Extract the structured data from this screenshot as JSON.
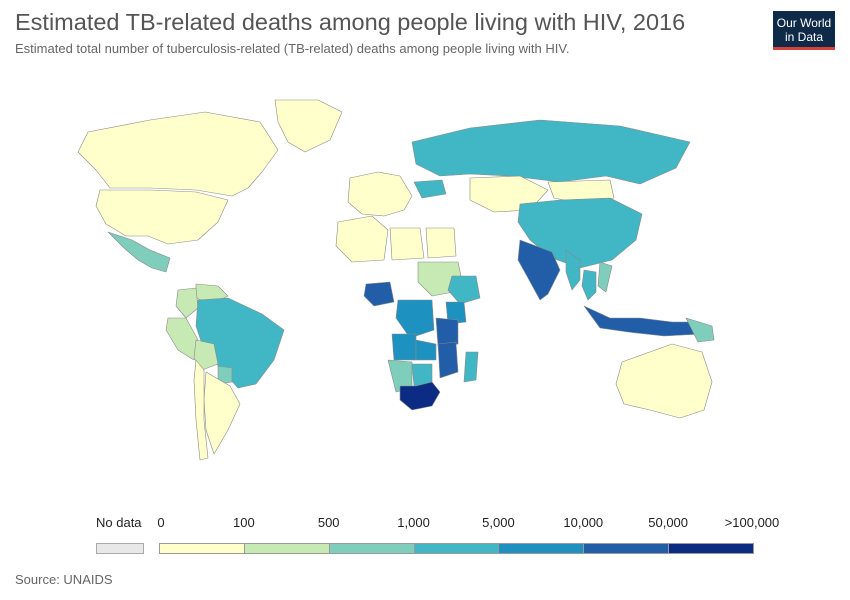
{
  "header": {
    "title": "Estimated TB-related deaths among people living with HIV, 2016",
    "subtitle": "Estimated total number of tuberculosis-related (TB-related) deaths among people living with HIV."
  },
  "logo": {
    "line1": "Our World",
    "line2": "in Data",
    "bg": "#0e2a48",
    "accent": "#d6413a"
  },
  "legend": {
    "no_data_label": "No data",
    "no_data_color": "#e8e8e8",
    "ticks": [
      "0",
      "100",
      "500",
      "1,000",
      "5,000",
      "10,000",
      "50,000",
      ">100,000"
    ],
    "colors": [
      "#ffffcc",
      "#c7e9b4",
      "#7fcdbb",
      "#41b6c4",
      "#1d91c0",
      "#225ea8",
      "#0c2c84"
    ]
  },
  "source": "Source: UNAIDS",
  "chart_data": {
    "type": "choropleth",
    "year": 2016,
    "unit": "deaths",
    "bins": [
      {
        "range": "0-100",
        "color": "#ffffcc"
      },
      {
        "range": "100-500",
        "color": "#c7e9b4"
      },
      {
        "range": "500-1,000",
        "color": "#7fcdbb"
      },
      {
        "range": "1,000-5,000",
        "color": "#41b6c4"
      },
      {
        "range": "5,000-10,000",
        "color": "#1d91c0"
      },
      {
        "range": "10,000-50,000",
        "color": "#225ea8"
      },
      {
        "range": ">100,000",
        "color": "#0c2c84"
      }
    ],
    "regions": [
      {
        "name": "Canada",
        "bin": 0
      },
      {
        "name": "United States",
        "bin": 0
      },
      {
        "name": "Mexico",
        "bin": 2
      },
      {
        "name": "Colombia",
        "bin": 1
      },
      {
        "name": "Venezuela",
        "bin": 1
      },
      {
        "name": "Peru",
        "bin": 1
      },
      {
        "name": "Brazil",
        "bin": 3
      },
      {
        "name": "Argentina",
        "bin": 0
      },
      {
        "name": "Chile",
        "bin": 0
      },
      {
        "name": "Bolivia",
        "bin": 1
      },
      {
        "name": "Paraguay",
        "bin": 2
      },
      {
        "name": "Greenland",
        "bin": 0
      },
      {
        "name": "Western Europe",
        "bin": 0
      },
      {
        "name": "Ukraine",
        "bin": 3
      },
      {
        "name": "Russia",
        "bin": 3
      },
      {
        "name": "Kazakhstan",
        "bin": 0
      },
      {
        "name": "Mongolia",
        "bin": 0
      },
      {
        "name": "China",
        "bin": 3
      },
      {
        "name": "India",
        "bin": 5
      },
      {
        "name": "Myanmar",
        "bin": 3
      },
      {
        "name": "Thailand",
        "bin": 3
      },
      {
        "name": "Vietnam",
        "bin": 2
      },
      {
        "name": "Indonesia",
        "bin": 5
      },
      {
        "name": "Papua New Guinea",
        "bin": 2
      },
      {
        "name": "Australia",
        "bin": 0
      },
      {
        "name": "Algeria",
        "bin": 0
      },
      {
        "name": "Libya",
        "bin": 0
      },
      {
        "name": "Egypt",
        "bin": 0
      },
      {
        "name": "Sudan",
        "bin": 1
      },
      {
        "name": "Nigeria",
        "bin": 5
      },
      {
        "name": "DR Congo",
        "bin": 4
      },
      {
        "name": "Ethiopia",
        "bin": 3
      },
      {
        "name": "Kenya",
        "bin": 4
      },
      {
        "name": "Tanzania",
        "bin": 5
      },
      {
        "name": "Angola",
        "bin": 4
      },
      {
        "name": "Zambia",
        "bin": 4
      },
      {
        "name": "Mozambique",
        "bin": 5
      },
      {
        "name": "Namibia",
        "bin": 2
      },
      {
        "name": "Botswana",
        "bin": 3
      },
      {
        "name": "South Africa",
        "bin": 6
      },
      {
        "name": "Madagascar",
        "bin": 3
      }
    ]
  }
}
